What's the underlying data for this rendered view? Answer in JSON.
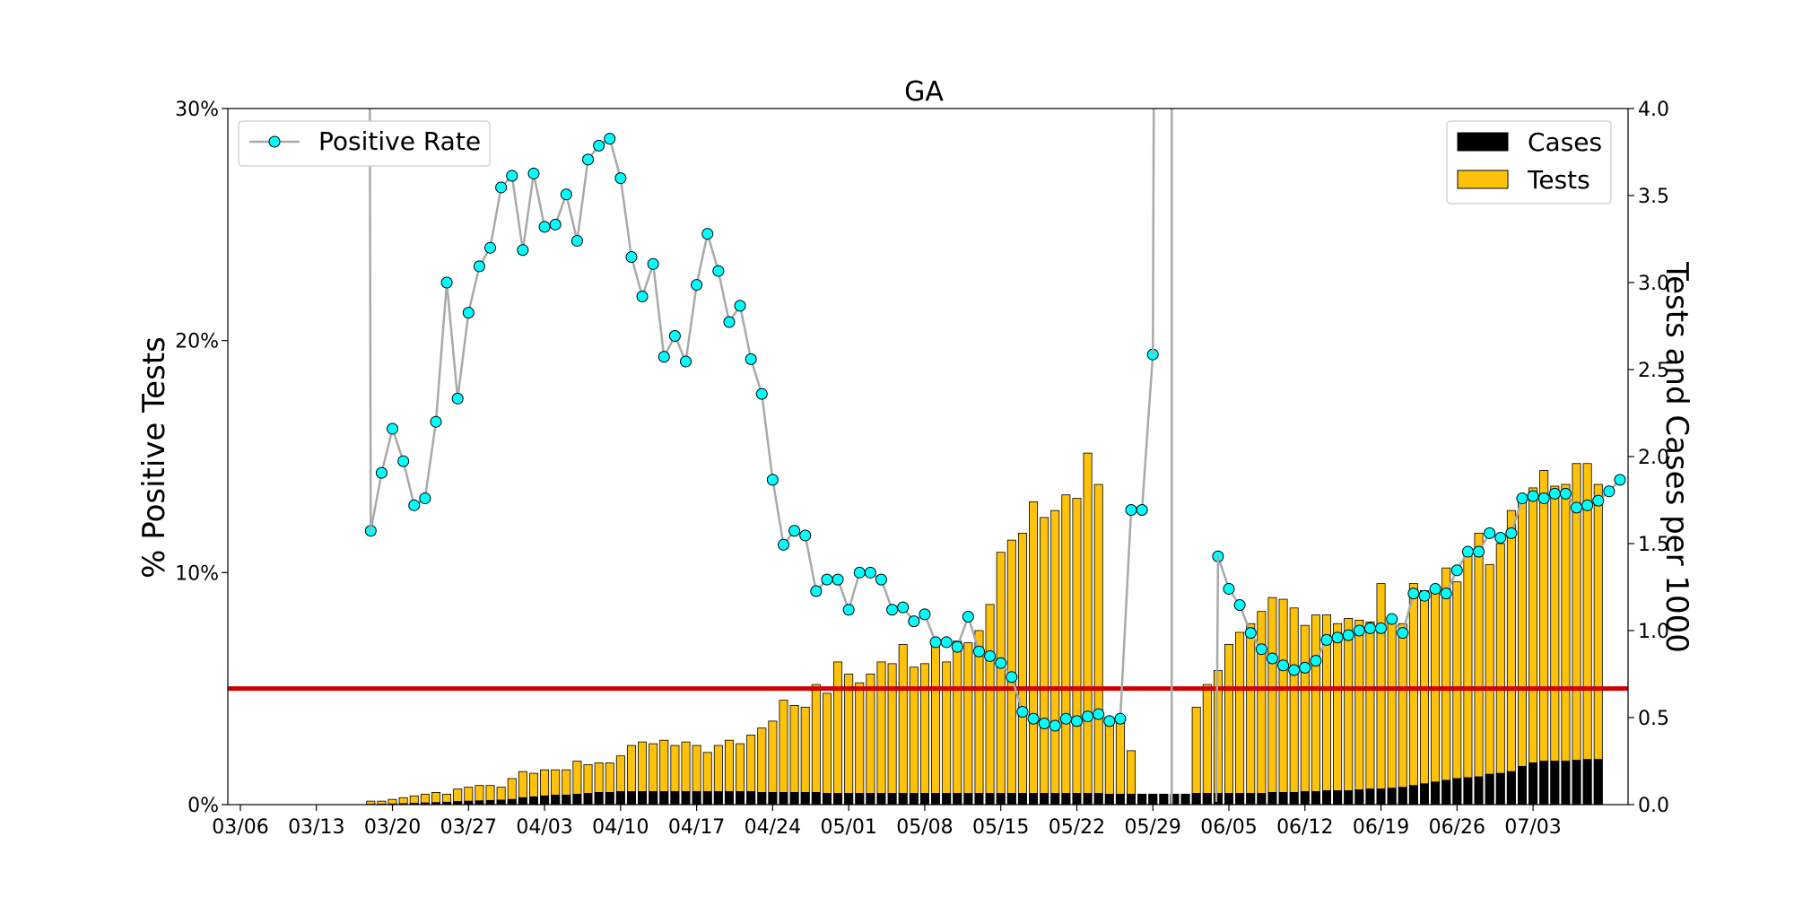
{
  "chart_data": {
    "type": "bar",
    "title": "GA",
    "ylabel_left": "% Positive Tests",
    "ylabel_right": "Tests and Cases per 1000",
    "left_ylim": [
      0,
      30
    ],
    "left_ticks": [
      "0%",
      "10%",
      "20%",
      "30%"
    ],
    "left_tick_values": [
      0,
      10,
      20,
      30
    ],
    "right_ylim": [
      0,
      4.0
    ],
    "right_ticks": [
      "0.0",
      "0.5",
      "1.0",
      "1.5",
      "2.0",
      "2.5",
      "3.0",
      "3.5",
      "4.0"
    ],
    "right_tick_values": [
      0,
      0.5,
      1.0,
      1.5,
      2.0,
      2.5,
      3.0,
      3.5,
      4.0
    ],
    "x_start": "03/06",
    "x_tick_labels": [
      "03/06",
      "03/13",
      "03/20",
      "03/27",
      "04/03",
      "04/10",
      "04/17",
      "04/24",
      "05/01",
      "05/08",
      "05/15",
      "05/22",
      "05/29",
      "06/05",
      "06/12",
      "06/19",
      "06/26",
      "07/03"
    ],
    "threshold_percent": 5,
    "legend_left": {
      "placement": "top-left",
      "entries": [
        "Positive Rate"
      ]
    },
    "legend_right": {
      "placement": "top-right",
      "entries": [
        "Cases",
        "Tests"
      ]
    },
    "colors": {
      "tests": "#FFC20A",
      "cases": "#000000",
      "line": "#A9A9A9",
      "marker": "#00FFFF",
      "threshold": "#CC0000"
    },
    "series": [
      {
        "name": "Tests",
        "start_date": "03/18",
        "values": [
          0.02,
          0.02,
          0.03,
          0.04,
          0.05,
          0.06,
          0.07,
          0.06,
          0.09,
          0.1,
          0.11,
          0.11,
          0.1,
          0.15,
          0.19,
          0.18,
          0.2,
          0.2,
          0.2,
          0.25,
          0.23,
          0.24,
          0.24,
          0.28,
          0.34,
          0.36,
          0.35,
          0.37,
          0.34,
          0.36,
          0.34,
          0.3,
          0.34,
          0.37,
          0.35,
          0.4,
          0.44,
          0.48,
          0.6,
          0.57,
          0.56,
          0.69,
          0.64,
          0.82,
          0.75,
          0.7,
          0.75,
          0.82,
          0.81,
          0.92,
          0.79,
          0.81,
          0.91,
          0.82,
          0.94,
          0.93,
          1.0,
          1.15,
          1.45,
          1.52,
          1.56,
          1.74,
          1.65,
          1.69,
          1.78,
          1.76,
          2.02,
          1.84,
          0.5,
          0.5,
          0.31,
          0.06,
          0.06,
          0.06,
          0.06,
          0.06,
          0.56,
          0.69,
          0.77,
          0.92,
          0.99,
          1.04,
          1.11,
          1.19,
          1.18,
          1.13,
          1.03,
          1.09,
          1.09,
          1.04,
          1.07,
          1.06,
          1.05,
          1.27,
          1.04,
          1.04,
          1.27,
          1.23,
          1.26,
          1.36,
          1.28,
          1.46,
          1.56,
          1.38,
          1.5,
          1.69,
          1.75,
          1.82,
          1.92,
          1.83,
          1.84,
          1.96,
          1.96,
          1.84
        ]
      },
      {
        "name": "Cases",
        "start_date": "03/18",
        "values": [
          0.002,
          0.003,
          0.004,
          0.006,
          0.008,
          0.01,
          0.012,
          0.014,
          0.018,
          0.02,
          0.022,
          0.024,
          0.026,
          0.03,
          0.04,
          0.045,
          0.05,
          0.055,
          0.055,
          0.06,
          0.065,
          0.07,
          0.07,
          0.075,
          0.075,
          0.075,
          0.075,
          0.075,
          0.075,
          0.075,
          0.075,
          0.075,
          0.075,
          0.075,
          0.075,
          0.075,
          0.07,
          0.07,
          0.07,
          0.07,
          0.07,
          0.07,
          0.065,
          0.065,
          0.065,
          0.065,
          0.065,
          0.065,
          0.065,
          0.065,
          0.065,
          0.065,
          0.065,
          0.065,
          0.065,
          0.065,
          0.065,
          0.065,
          0.065,
          0.065,
          0.065,
          0.065,
          0.065,
          0.065,
          0.065,
          0.065,
          0.065,
          0.065,
          0.06,
          0.06,
          0.06,
          0.06,
          0.06,
          0.06,
          0.06,
          0.06,
          0.065,
          0.065,
          0.065,
          0.065,
          0.065,
          0.065,
          0.065,
          0.07,
          0.07,
          0.07,
          0.075,
          0.075,
          0.08,
          0.08,
          0.08,
          0.085,
          0.09,
          0.09,
          0.095,
          0.1,
          0.11,
          0.12,
          0.13,
          0.14,
          0.15,
          0.155,
          0.16,
          0.175,
          0.18,
          0.19,
          0.22,
          0.24,
          0.25,
          0.25,
          0.25,
          0.255,
          0.26,
          0.26
        ]
      },
      {
        "name": "Positive Rate",
        "start_date": "03/18",
        "values": [
          11.8,
          14.3,
          16.2,
          14.8,
          12.9,
          13.2,
          16.5,
          22.5,
          17.5,
          21.2,
          23.2,
          24.0,
          26.6,
          27.1,
          23.9,
          27.2,
          24.9,
          25.0,
          26.3,
          24.3,
          27.8,
          28.4,
          28.7,
          27.0,
          23.6,
          21.9,
          23.3,
          19.3,
          20.2,
          19.1,
          22.4,
          24.6,
          23.0,
          20.8,
          21.5,
          19.2,
          17.7,
          14.0,
          11.2,
          11.8,
          11.6,
          9.2,
          9.7,
          9.7,
          8.4,
          10.0,
          10.0,
          9.7,
          8.4,
          8.5,
          7.9,
          8.2,
          7.0,
          7.0,
          6.8,
          8.1,
          6.6,
          6.4,
          6.1,
          5.5,
          4.0,
          3.7,
          3.5,
          3.4,
          3.7,
          3.6,
          3.8,
          3.9,
          3.6,
          3.7,
          12.7,
          12.7,
          19.4,
          null,
          null,
          null,
          null,
          null,
          10.7,
          9.3,
          8.6,
          7.4,
          6.7,
          6.3,
          6.0,
          5.8,
          5.9,
          6.2,
          7.1,
          7.2,
          7.3,
          7.5,
          7.6,
          7.6,
          8.0,
          7.4,
          9.1,
          9.0,
          9.3,
          9.1,
          10.1,
          10.9,
          10.9,
          11.7,
          11.5,
          11.7,
          13.2,
          13.3,
          13.2,
          13.4,
          13.4,
          12.8,
          12.9,
          13.1,
          13.5,
          14.0
        ]
      }
    ]
  }
}
